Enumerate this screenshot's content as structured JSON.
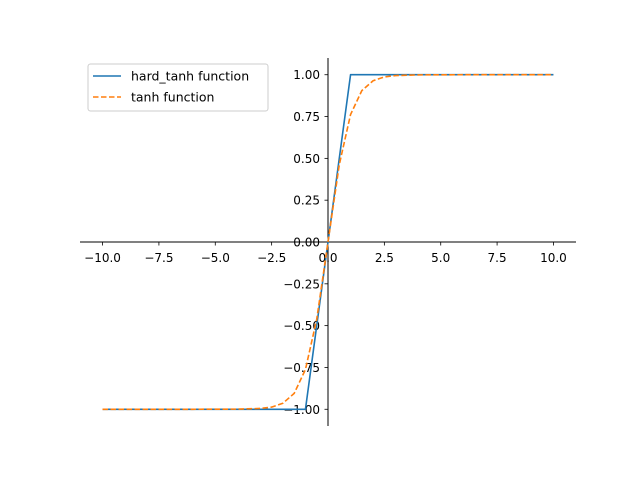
{
  "chart_data": {
    "type": "line",
    "xlim": [
      -11.0,
      11.0
    ],
    "ylim": [
      -1.1,
      1.1
    ],
    "x_ticks": [
      -10.0,
      -7.5,
      -5.0,
      -2.5,
      0.0,
      2.5,
      5.0,
      7.5,
      10.0
    ],
    "x_tick_labels": [
      "−10.0",
      "−7.5",
      "−5.0",
      "−2.5",
      "0.0",
      "2.5",
      "5.0",
      "7.5",
      "10.0"
    ],
    "y_ticks": [
      -1.0,
      -0.75,
      -0.5,
      -0.25,
      0.0,
      0.25,
      0.5,
      0.75,
      1.0
    ],
    "y_tick_labels": [
      "−1.00",
      "−0.75",
      "−0.50",
      "−0.25",
      "0.00",
      "0.25",
      "0.50",
      "0.75",
      "1.00"
    ],
    "grid": false,
    "spines": "centered-at-origin",
    "legend": "top-left",
    "series": [
      {
        "name": "hard_tanh function",
        "style": "solid",
        "color": "#1f77b4",
        "x": [
          -10.0,
          -1.0,
          1.0,
          10.0
        ],
        "y": [
          -1.0,
          -1.0,
          1.0,
          1.0
        ]
      },
      {
        "name": "tanh function",
        "style": "dashed",
        "color": "#ff7f0e",
        "x": [
          -10.0,
          -6.0,
          -4.0,
          -3.0,
          -2.5,
          -2.0,
          -1.5,
          -1.0,
          -0.5,
          0.0,
          0.5,
          1.0,
          1.5,
          2.0,
          2.5,
          3.0,
          4.0,
          6.0,
          10.0
        ],
        "y": [
          -1.0,
          -1.0,
          -0.999,
          -0.995,
          -0.987,
          -0.964,
          -0.905,
          -0.762,
          -0.462,
          0.0,
          0.462,
          0.762,
          0.905,
          0.964,
          0.987,
          0.995,
          0.999,
          1.0,
          1.0
        ]
      }
    ]
  }
}
